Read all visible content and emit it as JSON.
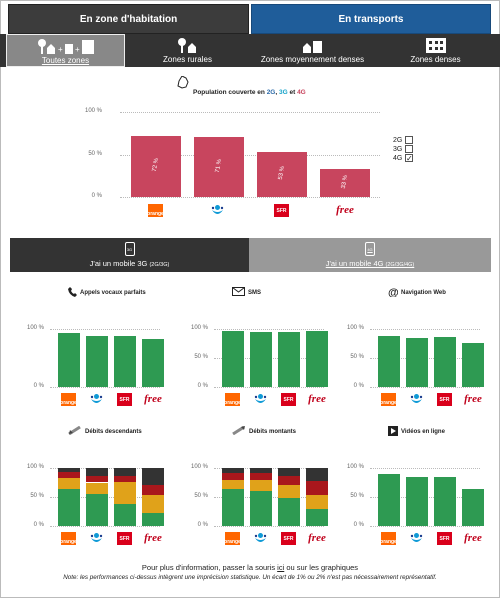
{
  "tabs": {
    "home": "En zone d'habitation",
    "transport": "En transports"
  },
  "zones": [
    {
      "label": "Toutes zones",
      "icon": "all-zones-icon"
    },
    {
      "label": "Zones rurales",
      "icon": "rural-icon"
    },
    {
      "label": "Zones moyennement denses",
      "icon": "medium-dense-icon"
    },
    {
      "label": "Zones denses",
      "icon": "dense-icon"
    }
  ],
  "coverage": {
    "title_pre": "Population couverte en ",
    "t2g": "2G",
    "sep1": ", ",
    "t3g": "3G",
    "sep2": " et ",
    "t4g": "4G",
    "yticks": [
      "100 %",
      "50 %",
      "0 %"
    ],
    "options": {
      "g2": "2G",
      "g3": "3G",
      "g4": "4G",
      "checked": "4G"
    },
    "chart_data": {
      "type": "bar",
      "categories": [
        "Orange",
        "Bouygues Telecom",
        "SFR",
        "Free"
      ],
      "values": [
        72,
        71,
        53,
        33
      ],
      "labels": [
        "72 %",
        "71 %",
        "53 %",
        "33 %"
      ],
      "ylim": [
        0,
        100
      ],
      "color": "#c8455e"
    }
  },
  "modes": {
    "m3g": {
      "label": "J'ai un mobile 3G ",
      "sub": "(2G/3G)",
      "icon": "3G"
    },
    "m4g": {
      "label": "J'ai un mobile 4G ",
      "sub": "(2G/3G/4G)",
      "icon": "4G"
    }
  },
  "small_charts": [
    {
      "key": "voice",
      "title": "Appels vocaux parfaits",
      "icon": "phone-icon",
      "yticks": [
        "100 %",
        "0 %"
      ],
      "chart_data": {
        "type": "bar",
        "categories": [
          "Orange",
          "Bouygues Telecom",
          "SFR",
          "Free"
        ],
        "values": [
          93,
          88,
          88,
          83
        ],
        "ylim": [
          0,
          100
        ]
      }
    },
    {
      "key": "sms",
      "title": "SMS",
      "icon": "envelope-icon",
      "yticks": [
        "100 %",
        "50 %",
        "0 %"
      ],
      "chart_data": {
        "type": "bar",
        "categories": [
          "Orange",
          "Bouygues Telecom",
          "SFR",
          "Free"
        ],
        "values": [
          97,
          95,
          95,
          96
        ],
        "ylim": [
          0,
          100
        ]
      }
    },
    {
      "key": "web",
      "title": "Navigation Web",
      "icon": "at-icon",
      "yticks": [
        "100 %",
        "50 %",
        "0 %"
      ],
      "chart_data": {
        "type": "bar",
        "categories": [
          "Orange",
          "Bouygues Telecom",
          "SFR",
          "Free"
        ],
        "values": [
          88,
          85,
          87,
          76
        ],
        "ylim": [
          0,
          100
        ]
      }
    },
    {
      "key": "down",
      "title": "Débits descendants",
      "icon": "download-icon",
      "yticks": [
        "100 %",
        "50 %",
        "0 %"
      ],
      "chart_data": {
        "type": "stacked-bar",
        "categories": [
          "Orange",
          "Bouygues Telecom",
          "SFR",
          "Free"
        ],
        "series": [
          {
            "values": [
              64,
              56,
              38,
              23
            ]
          },
          {
            "values": [
              19,
              19,
              38,
              30
            ]
          },
          {
            "values": [
              10,
              12,
              10,
              17
            ]
          },
          {
            "values": [
              7,
              13,
              14,
              30
            ]
          }
        ],
        "colors": [
          "#2e9a52",
          "#e0a21a",
          "#a9171c",
          "#333333"
        ],
        "ylim": [
          0,
          100
        ]
      }
    },
    {
      "key": "up",
      "title": "Débits montants",
      "icon": "upload-icon",
      "yticks": [
        "100 %",
        "50 %",
        "0 %"
      ],
      "chart_data": {
        "type": "stacked-bar",
        "categories": [
          "Orange",
          "Bouygues Telecom",
          "SFR",
          "Free"
        ],
        "series": [
          {
            "values": [
              64,
              60,
              48,
              30
            ]
          },
          {
            "values": [
              16,
              20,
              22,
              23
            ]
          },
          {
            "values": [
              12,
              12,
              16,
              24
            ]
          },
          {
            "values": [
              8,
              8,
              14,
              23
            ]
          }
        ],
        "colors": [
          "#2e9a52",
          "#e0a21a",
          "#a9171c",
          "#333333"
        ],
        "ylim": [
          0,
          100
        ]
      }
    },
    {
      "key": "video",
      "title": "Vidéos en ligne",
      "icon": "video-icon",
      "yticks": [
        "100 %",
        "50 %",
        "0 %"
      ],
      "chart_data": {
        "type": "bar",
        "categories": [
          "Orange",
          "Bouygues Telecom",
          "SFR",
          "Free"
        ],
        "values": [
          89,
          84,
          84,
          63
        ],
        "ylim": [
          0,
          100
        ]
      }
    }
  ],
  "operators": {
    "orange": "orange",
    "sfr": "SFR",
    "free": "free"
  },
  "footer": {
    "pre": "Pour plus d'information, passer la souris ",
    "ici": "ici",
    "post": " ou sur les graphiques",
    "note": "Note: les performances ci-dessus intègrent une imprécision statistique. Un écart de 1% ou 2% n'est pas nécessairement représentatif."
  },
  "colors": {
    "green": "#2e9a52",
    "coverage": "#c8455e",
    "transport_tab": "#1f5d9a"
  }
}
